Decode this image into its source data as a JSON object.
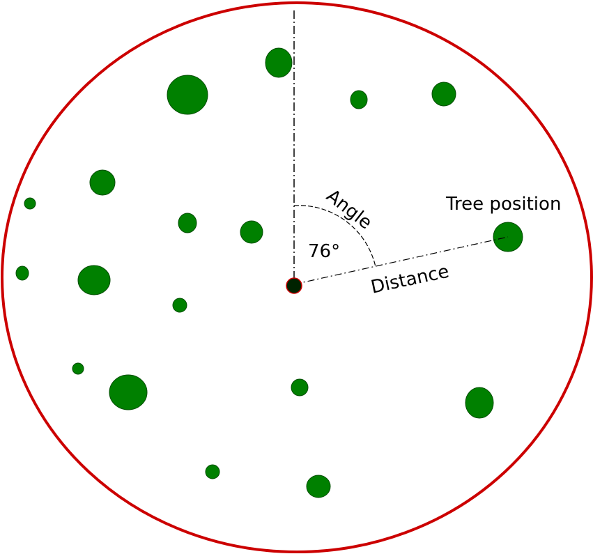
{
  "labels": {
    "angle": "Angle",
    "angle_value": "76°",
    "distance": "Distance",
    "tree_position": "Tree position"
  },
  "colors": {
    "plot_boundary": "#cc0000",
    "tree_fill": "#008000",
    "tree_stroke": "#004d00",
    "center_fill": "#002200",
    "line": "#000000"
  }
}
